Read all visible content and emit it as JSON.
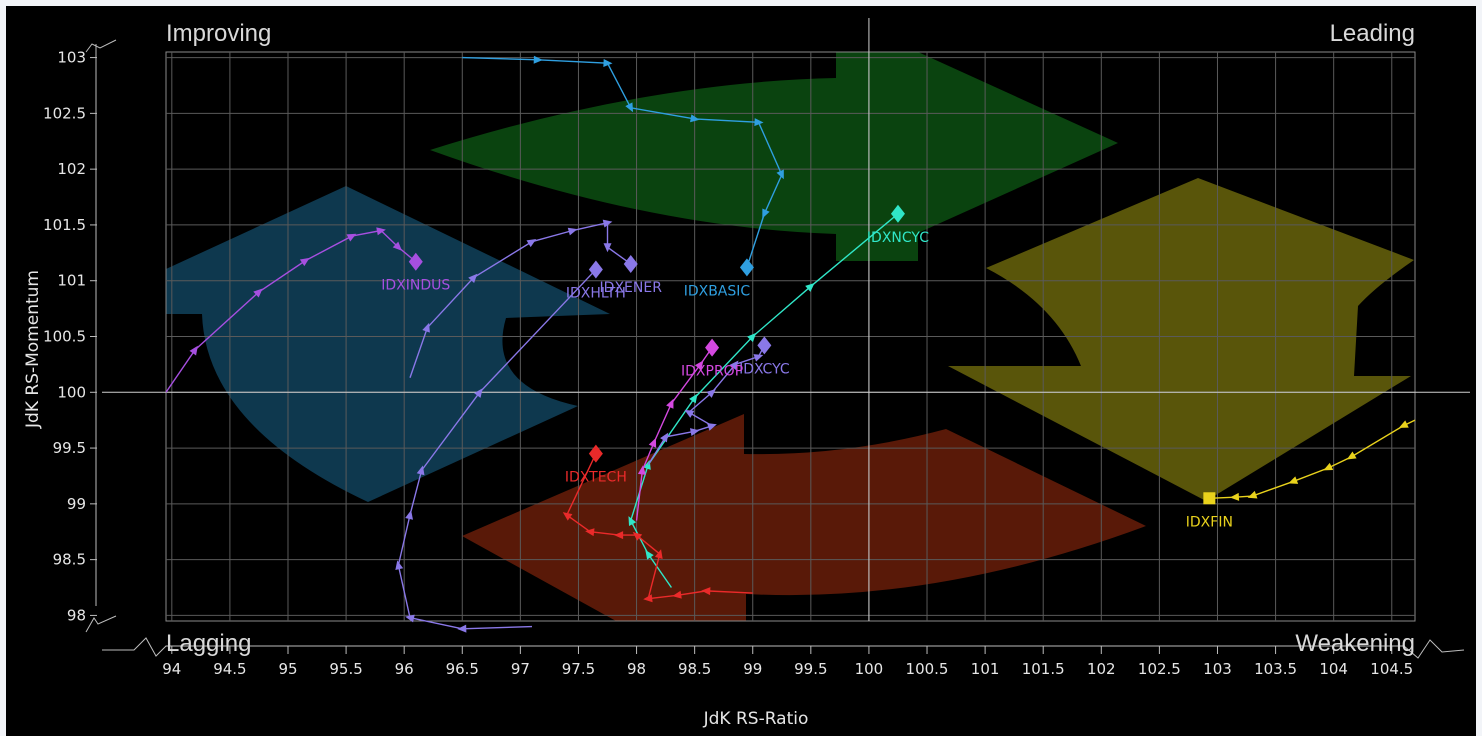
{
  "chart_data": {
    "type": "scatter",
    "variant": "relative-rotation-graph",
    "xlabel": "JdK RS-Ratio",
    "ylabel": "JdK RS-Momentum",
    "xlim": [
      93.95,
      104.7
    ],
    "ylim": [
      97.95,
      103.05
    ],
    "center": [
      100,
      100
    ],
    "xticks": [
      94,
      94.5,
      95,
      95.5,
      96,
      96.5,
      97,
      97.5,
      98,
      98.5,
      99,
      99.5,
      100,
      100.5,
      101,
      101.5,
      102,
      102.5,
      103,
      103.5,
      104,
      104.5
    ],
    "yticks": [
      98,
      98.5,
      99,
      99.5,
      100,
      100.5,
      101,
      101.5,
      102,
      102.5,
      103
    ],
    "grid": true,
    "quadrants": {
      "top_left": "Improving",
      "top_right": "Leading",
      "bottom_left": "Lagging",
      "bottom_right": "Weakening"
    },
    "series": [
      {
        "name": "IDXBASIC",
        "color": "#2f9fe0",
        "label_dx": -30,
        "label_dy": 28,
        "points": [
          [
            96.5,
            103.0
          ],
          [
            97.15,
            102.98
          ],
          [
            97.75,
            102.95
          ],
          [
            97.95,
            102.55
          ],
          [
            98.5,
            102.45
          ],
          [
            99.05,
            102.42
          ],
          [
            99.25,
            101.95
          ],
          [
            99.1,
            101.6
          ],
          [
            98.95,
            101.12
          ]
        ]
      },
      {
        "name": "IDXNCYC",
        "color": "#30e6c8",
        "label_dx": 0,
        "label_dy": 28,
        "points": [
          [
            98.3,
            98.25
          ],
          [
            98.1,
            98.55
          ],
          [
            97.95,
            98.85
          ],
          [
            98.1,
            99.35
          ],
          [
            98.5,
            99.95
          ],
          [
            99.0,
            100.5
          ],
          [
            99.5,
            100.95
          ],
          [
            100.25,
            101.6
          ]
        ]
      },
      {
        "name": "IDXFIN",
        "color": "#e9d21c",
        "label_dx": 0,
        "label_dy": 28,
        "points": [
          [
            104.7,
            99.75
          ],
          [
            104.6,
            99.7
          ],
          [
            104.15,
            99.42
          ],
          [
            103.95,
            99.32
          ],
          [
            103.65,
            99.2
          ],
          [
            103.3,
            99.07
          ],
          [
            103.15,
            99.06
          ],
          [
            102.93,
            99.05
          ]
        ]
      },
      {
        "name": "IDXINDUS",
        "color": "#a64fe0",
        "label_dx": 0,
        "label_dy": 28,
        "points": [
          [
            93.95,
            100.0
          ],
          [
            94.2,
            100.38
          ],
          [
            94.75,
            100.9
          ],
          [
            95.15,
            101.18
          ],
          [
            95.55,
            101.4
          ],
          [
            95.8,
            101.45
          ],
          [
            95.95,
            101.3
          ],
          [
            96.1,
            101.17
          ]
        ]
      },
      {
        "name": "IDXHLTH",
        "color": "#8a78e8",
        "label_dx": 0,
        "label_dy": 28,
        "points": [
          [
            97.1,
            97.9
          ],
          [
            96.5,
            97.88
          ],
          [
            96.05,
            97.98
          ],
          [
            95.95,
            98.45
          ],
          [
            96.05,
            98.9
          ],
          [
            96.15,
            99.3
          ],
          [
            96.65,
            100.0
          ],
          [
            97.65,
            101.1
          ]
        ]
      },
      {
        "name": "IDXENER",
        "color": "#8a78e8",
        "label_dx": 0,
        "label_dy": 28,
        "points": [
          [
            96.05,
            100.13
          ],
          [
            96.2,
            100.58
          ],
          [
            96.6,
            101.03
          ],
          [
            97.1,
            101.35
          ],
          [
            97.45,
            101.45
          ],
          [
            97.75,
            101.52
          ],
          [
            97.75,
            101.3
          ],
          [
            97.95,
            101.15
          ]
        ]
      },
      {
        "name": "IDXCYC",
        "color": "#8a78e8",
        "label_dx": 0,
        "label_dy": 28,
        "points": [
          [
            98.1,
            99.35
          ],
          [
            98.25,
            99.6
          ],
          [
            98.5,
            99.65
          ],
          [
            98.65,
            99.7
          ],
          [
            98.45,
            99.82
          ],
          [
            98.65,
            100.0
          ],
          [
            98.85,
            100.25
          ],
          [
            99.05,
            100.32
          ],
          [
            99.1,
            100.42
          ]
        ]
      },
      {
        "name": "IDXPROP",
        "color": "#d448e0",
        "label_dx": 0,
        "label_dy": 28,
        "points": [
          [
            98.0,
            98.85
          ],
          [
            98.05,
            99.3
          ],
          [
            98.15,
            99.55
          ],
          [
            98.3,
            99.9
          ],
          [
            98.55,
            100.25
          ],
          [
            98.65,
            100.4
          ]
        ]
      },
      {
        "name": "IDXTECH",
        "color": "#ea2a2a",
        "label_dx": 0,
        "label_dy": 28,
        "points": [
          [
            99.0,
            98.2
          ],
          [
            98.6,
            98.22
          ],
          [
            98.35,
            98.18
          ],
          [
            98.1,
            98.15
          ],
          [
            98.2,
            98.55
          ],
          [
            98.0,
            98.72
          ],
          [
            97.85,
            98.72
          ],
          [
            97.6,
            98.75
          ],
          [
            97.4,
            98.9
          ],
          [
            97.65,
            99.45
          ]
        ]
      }
    ]
  }
}
